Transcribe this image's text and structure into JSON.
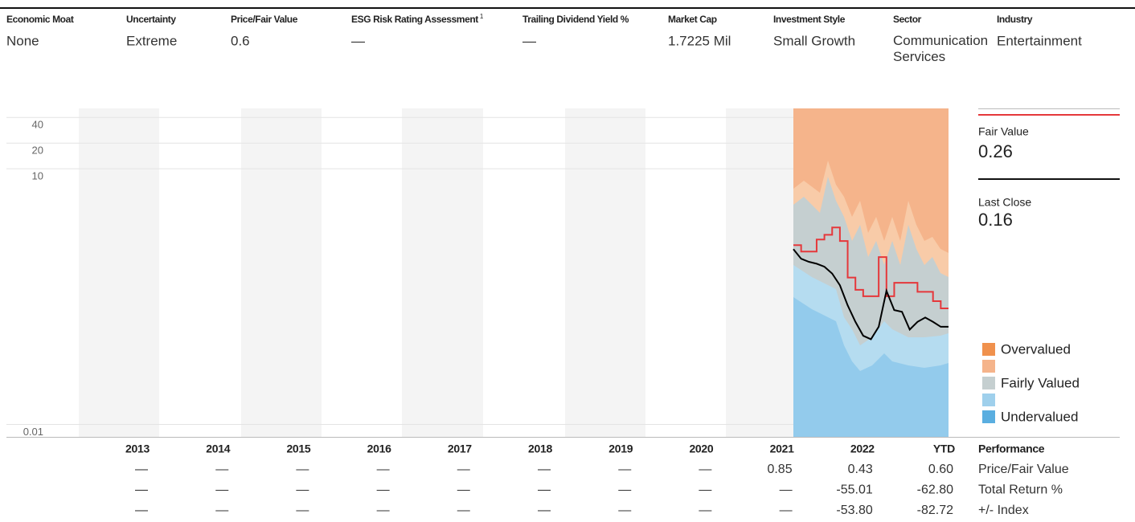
{
  "header": {
    "columns": [
      {
        "label": "Economic Moat",
        "value": "None"
      },
      {
        "label": "Uncertainty",
        "value": "Extreme"
      },
      {
        "label": "Price/Fair Value",
        "value": "0.6"
      },
      {
        "label": "ESG Risk Rating Assessment",
        "note": "1",
        "value": "—"
      },
      {
        "label": "Trailing Dividend Yield %",
        "value": "—"
      },
      {
        "label": "Market Cap",
        "value": "1.7225 Mil"
      },
      {
        "label": "Investment Style",
        "value": "Small Growth"
      },
      {
        "label": "Sector",
        "value": "Communication Services"
      },
      {
        "label": "Industry",
        "value": "Entertainment"
      }
    ]
  },
  "chart_data": {
    "type": "line",
    "log_scale": true,
    "grid": true,
    "ylim": [
      0.007,
      50
    ],
    "yticks": [
      40,
      20,
      10,
      0.01
    ],
    "series": [
      {
        "name": "Fair Value",
        "color": "#e5383b",
        "current": "0.26",
        "step": true,
        "values": [
          1.27,
          1.07,
          1.07,
          1.48,
          1.68,
          2.05,
          1.42,
          0.53,
          0.38,
          0.32,
          0.32,
          0.92,
          0.32,
          0.46,
          0.46,
          0.46,
          0.36,
          0.36,
          0.28,
          0.23,
          0.23
        ]
      },
      {
        "name": "Last Close",
        "color": "#000000",
        "current": "0.16",
        "step": false,
        "values": [
          1.14,
          0.88,
          0.81,
          0.77,
          0.71,
          0.59,
          0.43,
          0.25,
          0.16,
          0.11,
          0.1,
          0.14,
          0.37,
          0.22,
          0.21,
          0.13,
          0.16,
          0.18,
          0.16,
          0.14,
          0.14
        ]
      }
    ],
    "legend": {
      "labels": [
        "Overvalued",
        null,
        "Fairly Valued",
        null,
        "Undervalued"
      ],
      "colors": [
        "#f0914d",
        "#f5b48b",
        "#c5cfd0",
        "#9fd0ec",
        "#5aaee0"
      ]
    }
  },
  "performance": {
    "title": "Performance",
    "columns": [
      "2013",
      "2014",
      "2015",
      "2016",
      "2017",
      "2018",
      "2019",
      "2020",
      "2021",
      "2022",
      "YTD"
    ],
    "rows": [
      {
        "label": "Price/Fair Value",
        "cells": [
          "—",
          "—",
          "—",
          "—",
          "—",
          "—",
          "—",
          "—",
          "0.85",
          "0.43",
          "0.60"
        ]
      },
      {
        "label": "Total Return %",
        "cells": [
          "—",
          "—",
          "—",
          "—",
          "—",
          "—",
          "—",
          "—",
          "—",
          "-55.01",
          "-62.80"
        ]
      },
      {
        "label": "+/- Index",
        "cells": [
          "—",
          "—",
          "—",
          "—",
          "—",
          "—",
          "—",
          "—",
          "—",
          "-53.80",
          "-82.72"
        ]
      }
    ]
  }
}
